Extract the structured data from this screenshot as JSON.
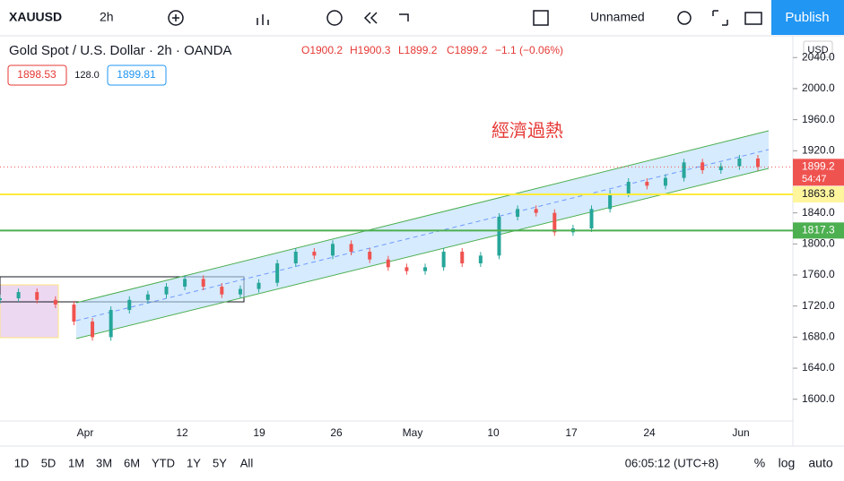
{
  "toolbar": {
    "symbol": "XAUUSD",
    "interval": "2h",
    "layout_name": "Unnamed",
    "publish": "Publish"
  },
  "legend": {
    "title": "Gold Spot / U.S. Dollar · 2h · OANDA",
    "open": "O1900.2",
    "high": "H1900.3",
    "low": "L1899.2",
    "close": "C1899.2",
    "change": "−1.1 (−0.06%)",
    "bid": "1898.53",
    "spread": "128.0",
    "ask": "1899.81"
  },
  "chart": {
    "currency": "USD",
    "annotation": "經濟過熱",
    "ylim": [
      1572,
      2068
    ],
    "yticks": [
      {
        "value": 2040,
        "label": "2040.0"
      },
      {
        "value": 2000,
        "label": "2000.0"
      },
      {
        "value": 1960,
        "label": "1960.0"
      },
      {
        "value": 1920,
        "label": "1920.0"
      },
      {
        "value": 1840,
        "label": "1840.0"
      },
      {
        "value": 1800,
        "label": "1800.0"
      },
      {
        "value": 1760,
        "label": "1760.0"
      },
      {
        "value": 1720,
        "label": "1720.0"
      },
      {
        "value": 1680,
        "label": "1680.0"
      },
      {
        "value": 1640,
        "label": "1640.0"
      },
      {
        "value": 1600,
        "label": "1600.0"
      }
    ],
    "xticks": [
      "Apr",
      "12",
      "19",
      "26",
      "May",
      "10",
      "17",
      "24",
      "Jun"
    ],
    "closes": [
      1730,
      1738,
      1728,
      1722,
      1700,
      1680,
      1715,
      1728,
      1735,
      1745,
      1755,
      1745,
      1735,
      1742,
      1750,
      1775,
      1790,
      1785,
      1800,
      1790,
      1780,
      1770,
      1765,
      1770,
      1790,
      1775,
      1785,
      1835,
      1845,
      1840,
      1815,
      1820,
      1845,
      1865,
      1880,
      1875,
      1885,
      1905,
      1895,
      1900,
      1910,
      1899
    ],
    "last_price": 1899.2,
    "countdown": "54:47",
    "levels": [
      1863.8,
      1817.3
    ]
  },
  "bottom": {
    "ranges": [
      "1D",
      "5D",
      "1M",
      "3M",
      "6M",
      "YTD",
      "1Y",
      "5Y",
      "All"
    ],
    "clock": "06:05:12 (UTC+8)",
    "percent": "%",
    "log": "log",
    "auto": "auto"
  }
}
